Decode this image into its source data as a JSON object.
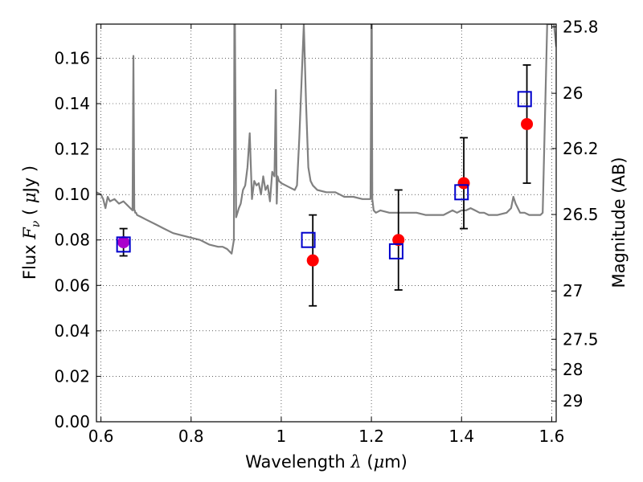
{
  "chart_data": {
    "type": "scatter",
    "xlabel": "Wavelength",
    "xlabel_symbol": "λ",
    "xlabel_unit_pre": " (",
    "xlabel_unit_mu": "μ",
    "xlabel_unit_post": "m)",
    "ylabel": "Flux",
    "ylabel_symbol": "F",
    "ylabel_sub": "ν",
    "ylabel_unit_pre": "( ",
    "ylabel_unit_mu": "μ",
    "ylabel_unit_post": "Jy )",
    "y2label": "Magnitude (AB)",
    "xlim": [
      0.59,
      1.61
    ],
    "ylim": [
      0.0,
      0.175
    ],
    "grid": true,
    "x_ticks": [
      0.6,
      0.8,
      1.0,
      1.2,
      1.4,
      1.6
    ],
    "x_tick_labels": [
      "0.6",
      "0.8",
      "1",
      "1.2",
      "1.4",
      "1.6"
    ],
    "y_ticks": [
      0.0,
      0.02,
      0.04,
      0.06,
      0.08,
      0.1,
      0.12,
      0.14,
      0.16
    ],
    "y_tick_labels": [
      "0.00",
      "0.02",
      "0.04",
      "0.06",
      "0.08",
      "0.10",
      "0.12",
      "0.14",
      "0.16"
    ],
    "y2_ticks": [
      25.8,
      26,
      26.2,
      26.5,
      27,
      27.5,
      28,
      29
    ],
    "y2_tick_labels": [
      "25.8",
      "26",
      "26.2",
      "26.5",
      "27",
      "27.5",
      "28",
      "29"
    ],
    "colors": {
      "spectrum": "#808080",
      "observed": "#ff0000",
      "model": "#0000cc",
      "errorbar": "#000000",
      "overlap": "#aa00cc"
    },
    "observed": {
      "x": [
        0.65,
        1.07,
        1.26,
        1.405,
        1.545
      ],
      "y": [
        0.079,
        0.071,
        0.08,
        0.105,
        0.131
      ],
      "yerr": [
        0.006,
        0.02,
        0.022,
        0.02,
        0.026
      ]
    },
    "model_points": {
      "x": [
        0.65,
        1.06,
        1.255,
        1.4,
        1.54
      ],
      "y": [
        0.078,
        0.08,
        0.075,
        0.101,
        0.142
      ]
    },
    "spectrum": {
      "x": [
        0.59,
        0.6,
        0.605,
        0.61,
        0.615,
        0.62,
        0.63,
        0.64,
        0.65,
        0.66,
        0.665,
        0.67,
        0.672,
        0.674,
        0.675,
        0.676,
        0.678,
        0.68,
        0.69,
        0.7,
        0.72,
        0.74,
        0.76,
        0.78,
        0.8,
        0.82,
        0.84,
        0.86,
        0.87,
        0.88,
        0.885,
        0.89,
        0.895,
        0.896,
        0.897,
        0.9,
        0.903,
        0.906,
        0.91,
        0.915,
        0.92,
        0.925,
        0.93,
        0.935,
        0.94,
        0.945,
        0.95,
        0.955,
        0.96,
        0.965,
        0.97,
        0.975,
        0.98,
        0.985,
        0.988,
        0.99,
        0.992,
        0.995,
        1.0,
        1.01,
        1.02,
        1.03,
        1.035,
        1.04,
        1.045,
        1.05,
        1.055,
        1.06,
        1.065,
        1.07,
        1.08,
        1.1,
        1.12,
        1.14,
        1.16,
        1.18,
        1.19,
        1.198,
        1.2,
        1.201,
        1.202,
        1.205,
        1.21,
        1.22,
        1.24,
        1.26,
        1.28,
        1.3,
        1.32,
        1.34,
        1.36,
        1.38,
        1.39,
        1.4,
        1.41,
        1.42,
        1.43,
        1.44,
        1.45,
        1.46,
        1.48,
        1.5,
        1.51,
        1.515,
        1.52,
        1.525,
        1.53,
        1.54,
        1.55,
        1.56,
        1.57,
        1.575,
        1.58,
        1.59,
        1.595,
        1.6,
        1.605,
        1.61
      ],
      "y": [
        0.101,
        0.1,
        0.098,
        0.094,
        0.099,
        0.097,
        0.098,
        0.096,
        0.097,
        0.095,
        0.094,
        0.093,
        0.161,
        0.093,
        0.093,
        0.092,
        0.092,
        0.091,
        0.09,
        0.089,
        0.087,
        0.085,
        0.083,
        0.082,
        0.081,
        0.08,
        0.078,
        0.077,
        0.077,
        0.076,
        0.075,
        0.074,
        0.08,
        0.18,
        0.18,
        0.09,
        0.092,
        0.094,
        0.096,
        0.102,
        0.104,
        0.112,
        0.127,
        0.098,
        0.106,
        0.104,
        0.105,
        0.1,
        0.108,
        0.102,
        0.104,
        0.097,
        0.11,
        0.108,
        0.146,
        0.096,
        0.108,
        0.106,
        0.105,
        0.104,
        0.103,
        0.102,
        0.104,
        0.125,
        0.15,
        0.175,
        0.14,
        0.112,
        0.106,
        0.104,
        0.102,
        0.101,
        0.101,
        0.099,
        0.099,
        0.098,
        0.098,
        0.098,
        0.175,
        0.175,
        0.098,
        0.093,
        0.092,
        0.093,
        0.092,
        0.092,
        0.092,
        0.092,
        0.091,
        0.091,
        0.091,
        0.093,
        0.092,
        0.093,
        0.093,
        0.094,
        0.093,
        0.092,
        0.092,
        0.091,
        0.091,
        0.092,
        0.094,
        0.099,
        0.096,
        0.094,
        0.092,
        0.092,
        0.091,
        0.091,
        0.091,
        0.091,
        0.092,
        0.175,
        0.175,
        0.175,
        0.175,
        0.165
      ]
    }
  }
}
